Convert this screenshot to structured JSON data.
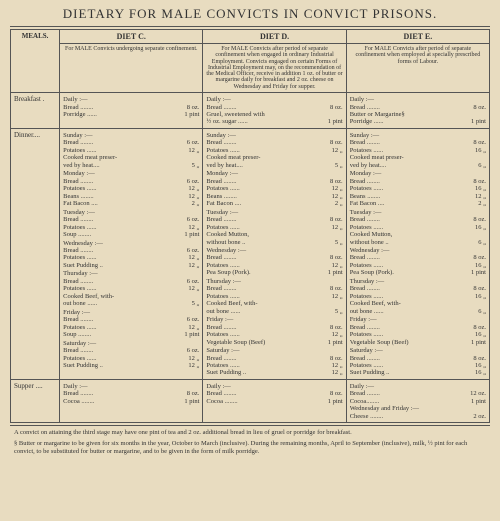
{
  "title": "DIETARY FOR MALE CONVICTS IN CONVICT PRISONS.",
  "meals_label": "MEALS.",
  "diets": {
    "c": {
      "head": "DIET C.",
      "desc": "For MALE Convicts undergoing separate confinement."
    },
    "d": {
      "head": "DIET D.",
      "desc": "For MALE Convicts after period of separate confinement when engaged in ordinary Industrial Employment. Convicts engaged on certain Forms of Industrial Employment may, on the recommendation of the Medical Officer, receive in addition 1 oz. of butter or margarine daily for breakfast and 2 oz. cheese on Wednesday and Friday for supper."
    },
    "e": {
      "head": "DIET E.",
      "desc": "For MALE Convicts after period of separate confinement when employed at specially prescribed forms of Labour."
    }
  },
  "row_labels": {
    "breakfast": "Breakfast .",
    "dinner": "Dinner....",
    "supper": "Supper ...."
  },
  "breakfast": {
    "c": {
      "hdr": "Daily :—",
      "lines": [
        [
          "Bread ........",
          "8 oz."
        ],
        [
          "Porridge ......",
          "1 pint"
        ]
      ]
    },
    "d": {
      "hdr": "Daily :—",
      "lines": [
        [
          "Bread ........",
          "8 oz."
        ],
        [
          "Gruel, sweetened with",
          ""
        ],
        [
          "  ½ oz. sugar ......",
          "1 pint"
        ]
      ]
    },
    "e": {
      "hdr": "Daily :—",
      "lines": [
        [
          "Bread ........",
          "8 oz."
        ],
        [
          "Butter or Margarine§",
          ""
        ],
        [
          "Porridge ......",
          "1 pint"
        ]
      ]
    }
  },
  "dinner": {
    "c": [
      {
        "hdr": "Sunday :—",
        "lines": [
          [
            "Bread ........",
            "6 oz."
          ],
          [
            "Potatoes ......",
            "12 „"
          ],
          [
            "Cooked meat preser-",
            ""
          ],
          [
            "  ved by heat....",
            "5 „"
          ]
        ]
      },
      {
        "hdr": "Monday :—",
        "lines": [
          [
            "Bread ........",
            "6 oz."
          ],
          [
            "Potatoes ......",
            "12 „"
          ],
          [
            "Beans ........",
            "12 „"
          ],
          [
            "Fat Bacon ....",
            "2 „"
          ]
        ]
      },
      {
        "hdr": "Tuesday :—",
        "lines": [
          [
            "Bread ........",
            "6 oz."
          ],
          [
            "Potatoes ......",
            "12 „"
          ],
          [
            "Soup ........",
            "1 pint"
          ]
        ]
      },
      {
        "hdr": "Wednesday :—",
        "lines": [
          [
            "Bread ........",
            "6 oz."
          ],
          [
            "Potatoes ......",
            "12 „"
          ],
          [
            "Suet Pudding ..",
            "12 „"
          ]
        ]
      },
      {
        "hdr": "Thursday :—",
        "lines": [
          [
            "Bread ........",
            "6 oz."
          ],
          [
            "Potatoes ......",
            "12 „"
          ],
          [
            "Cooked Beef, with-",
            ""
          ],
          [
            "  out bone ......",
            "5 „"
          ]
        ]
      },
      {
        "hdr": "Friday :—",
        "lines": [
          [
            "Bread ........",
            "6 oz."
          ],
          [
            "Potatoes ......",
            "12 „"
          ],
          [
            "Soup ........",
            "1 pint"
          ]
        ]
      },
      {
        "hdr": "Saturday :—",
        "lines": [
          [
            "Bread ........",
            "6 oz."
          ],
          [
            "Potatoes ......",
            "12 „"
          ],
          [
            "Suet Pudding ..",
            "12 „"
          ]
        ]
      }
    ],
    "d": [
      {
        "hdr": "Sunday :—",
        "lines": [
          [
            "Bread ........",
            "8 oz."
          ],
          [
            "Potatoes ......",
            "12 „"
          ],
          [
            "Cooked meat preser-",
            ""
          ],
          [
            "  ved by heat....",
            "5 „"
          ]
        ]
      },
      {
        "hdr": "Monday :—",
        "lines": [
          [
            "Bread ........",
            "8 oz."
          ],
          [
            "Potatoes ......",
            "12 „"
          ],
          [
            "Beans ........",
            "12 „"
          ],
          [
            "Fat Bacon ....",
            "2 „"
          ]
        ]
      },
      {
        "hdr": "Tuesday :—",
        "lines": [
          [
            "Bread ........",
            "8 oz."
          ],
          [
            "Potatoes ......",
            "12 „"
          ],
          [
            "Cooked Mutton,",
            ""
          ],
          [
            "  without bone ..",
            "5 „"
          ]
        ]
      },
      {
        "hdr": "Wednesday :—",
        "lines": [
          [
            "Bread ........",
            "8 oz."
          ],
          [
            "Potatoes ......",
            "12 „"
          ],
          [
            "Pea Soup (Pork).",
            "1 pint"
          ]
        ]
      },
      {
        "hdr": "Thursday :—",
        "lines": [
          [
            "Bread ........",
            "8 oz."
          ],
          [
            "Potatoes ......",
            "12 „"
          ],
          [
            "Cooked Beef, with-",
            ""
          ],
          [
            "  out bone ......",
            "5 „"
          ]
        ]
      },
      {
        "hdr": "Friday :—",
        "lines": [
          [
            "Bread ........",
            "8 oz."
          ],
          [
            "Potatoes ......",
            "12 „"
          ],
          [
            "Vegetable Soup (Beef)",
            "1 pint"
          ]
        ]
      },
      {
        "hdr": "Saturday :—",
        "lines": [
          [
            "Bread ........",
            "8 oz."
          ],
          [
            "Potatoes ......",
            "12 „"
          ],
          [
            "Suet Pudding ..",
            "12 „"
          ]
        ]
      }
    ],
    "e": [
      {
        "hdr": "Sunday :—",
        "lines": [
          [
            "Bread ........",
            "8 oz."
          ],
          [
            "Potatoes ......",
            "16 „"
          ],
          [
            "Cooked meat preser-",
            ""
          ],
          [
            "  ved by heat....",
            "6 „"
          ]
        ]
      },
      {
        "hdr": "Monday :—",
        "lines": [
          [
            "Bread ........",
            "8 oz."
          ],
          [
            "Potatoes ......",
            "16 „"
          ],
          [
            "Beans ........",
            "12 „"
          ],
          [
            "Fat Bacon ....",
            "2 „"
          ]
        ]
      },
      {
        "hdr": "Tuesday :—",
        "lines": [
          [
            "Bread ........",
            "8 oz."
          ],
          [
            "Potatoes ......",
            "16 „"
          ],
          [
            "Cooked Mutton,",
            ""
          ],
          [
            "  without bone ..",
            "6 „"
          ]
        ]
      },
      {
        "hdr": "Wednesday :—",
        "lines": [
          [
            "Bread ........",
            "8 oz."
          ],
          [
            "Potatoes ......",
            "16 „"
          ],
          [
            "Pea Soup (Pork).",
            "1 pint"
          ]
        ]
      },
      {
        "hdr": "Thursday :—",
        "lines": [
          [
            "Bread ........",
            "8 oz."
          ],
          [
            "Potatoes ......",
            "16 „"
          ],
          [
            "Cooked Beef, with-",
            ""
          ],
          [
            "  out bone ......",
            "6 „"
          ]
        ]
      },
      {
        "hdr": "Friday :—",
        "lines": [
          [
            "Bread ........",
            "8 oz."
          ],
          [
            "Potatoes ......",
            "16 „"
          ],
          [
            "Vegetable Soup (Beef)",
            "1 pint"
          ]
        ]
      },
      {
        "hdr": "Saturday :—",
        "lines": [
          [
            "Bread ........",
            "8 oz."
          ],
          [
            "Potatoes ......",
            "16 „"
          ],
          [
            "Suet Pudding ..",
            "16 „"
          ]
        ]
      }
    ]
  },
  "supper": {
    "c": {
      "hdr": "Daily :—",
      "lines": [
        [
          "Bread ........",
          "8 oz."
        ],
        [
          "Cocoa ........",
          "1 pint"
        ]
      ]
    },
    "d": {
      "hdr": "Daily :—",
      "lines": [
        [
          "Bread ........",
          "8 oz."
        ],
        [
          "Cocoa ........",
          "1 pint"
        ]
      ]
    },
    "e": {
      "hdr": "Daily :—",
      "lines": [
        [
          "Bread ........",
          "12 oz."
        ],
        [
          "Cocoa........",
          "1 pint"
        ],
        [
          "Wednesday and Friday :—",
          ""
        ],
        [
          "Cheese ........",
          "2 oz."
        ]
      ]
    }
  },
  "footnotes": {
    "a": "A convict on attaining the third stage may have one pint of tea and 2 oz. additional bread in lieu of gruel or porridge for breakfast.",
    "b": "§ Butter or margarine to be given for six months in the year, October to March (inclusive). During the remaining months, April to September (inclusive), milk, ½ pint for each convict, to be substituted for butter or margarine, and to be given in the form of milk porridge."
  }
}
